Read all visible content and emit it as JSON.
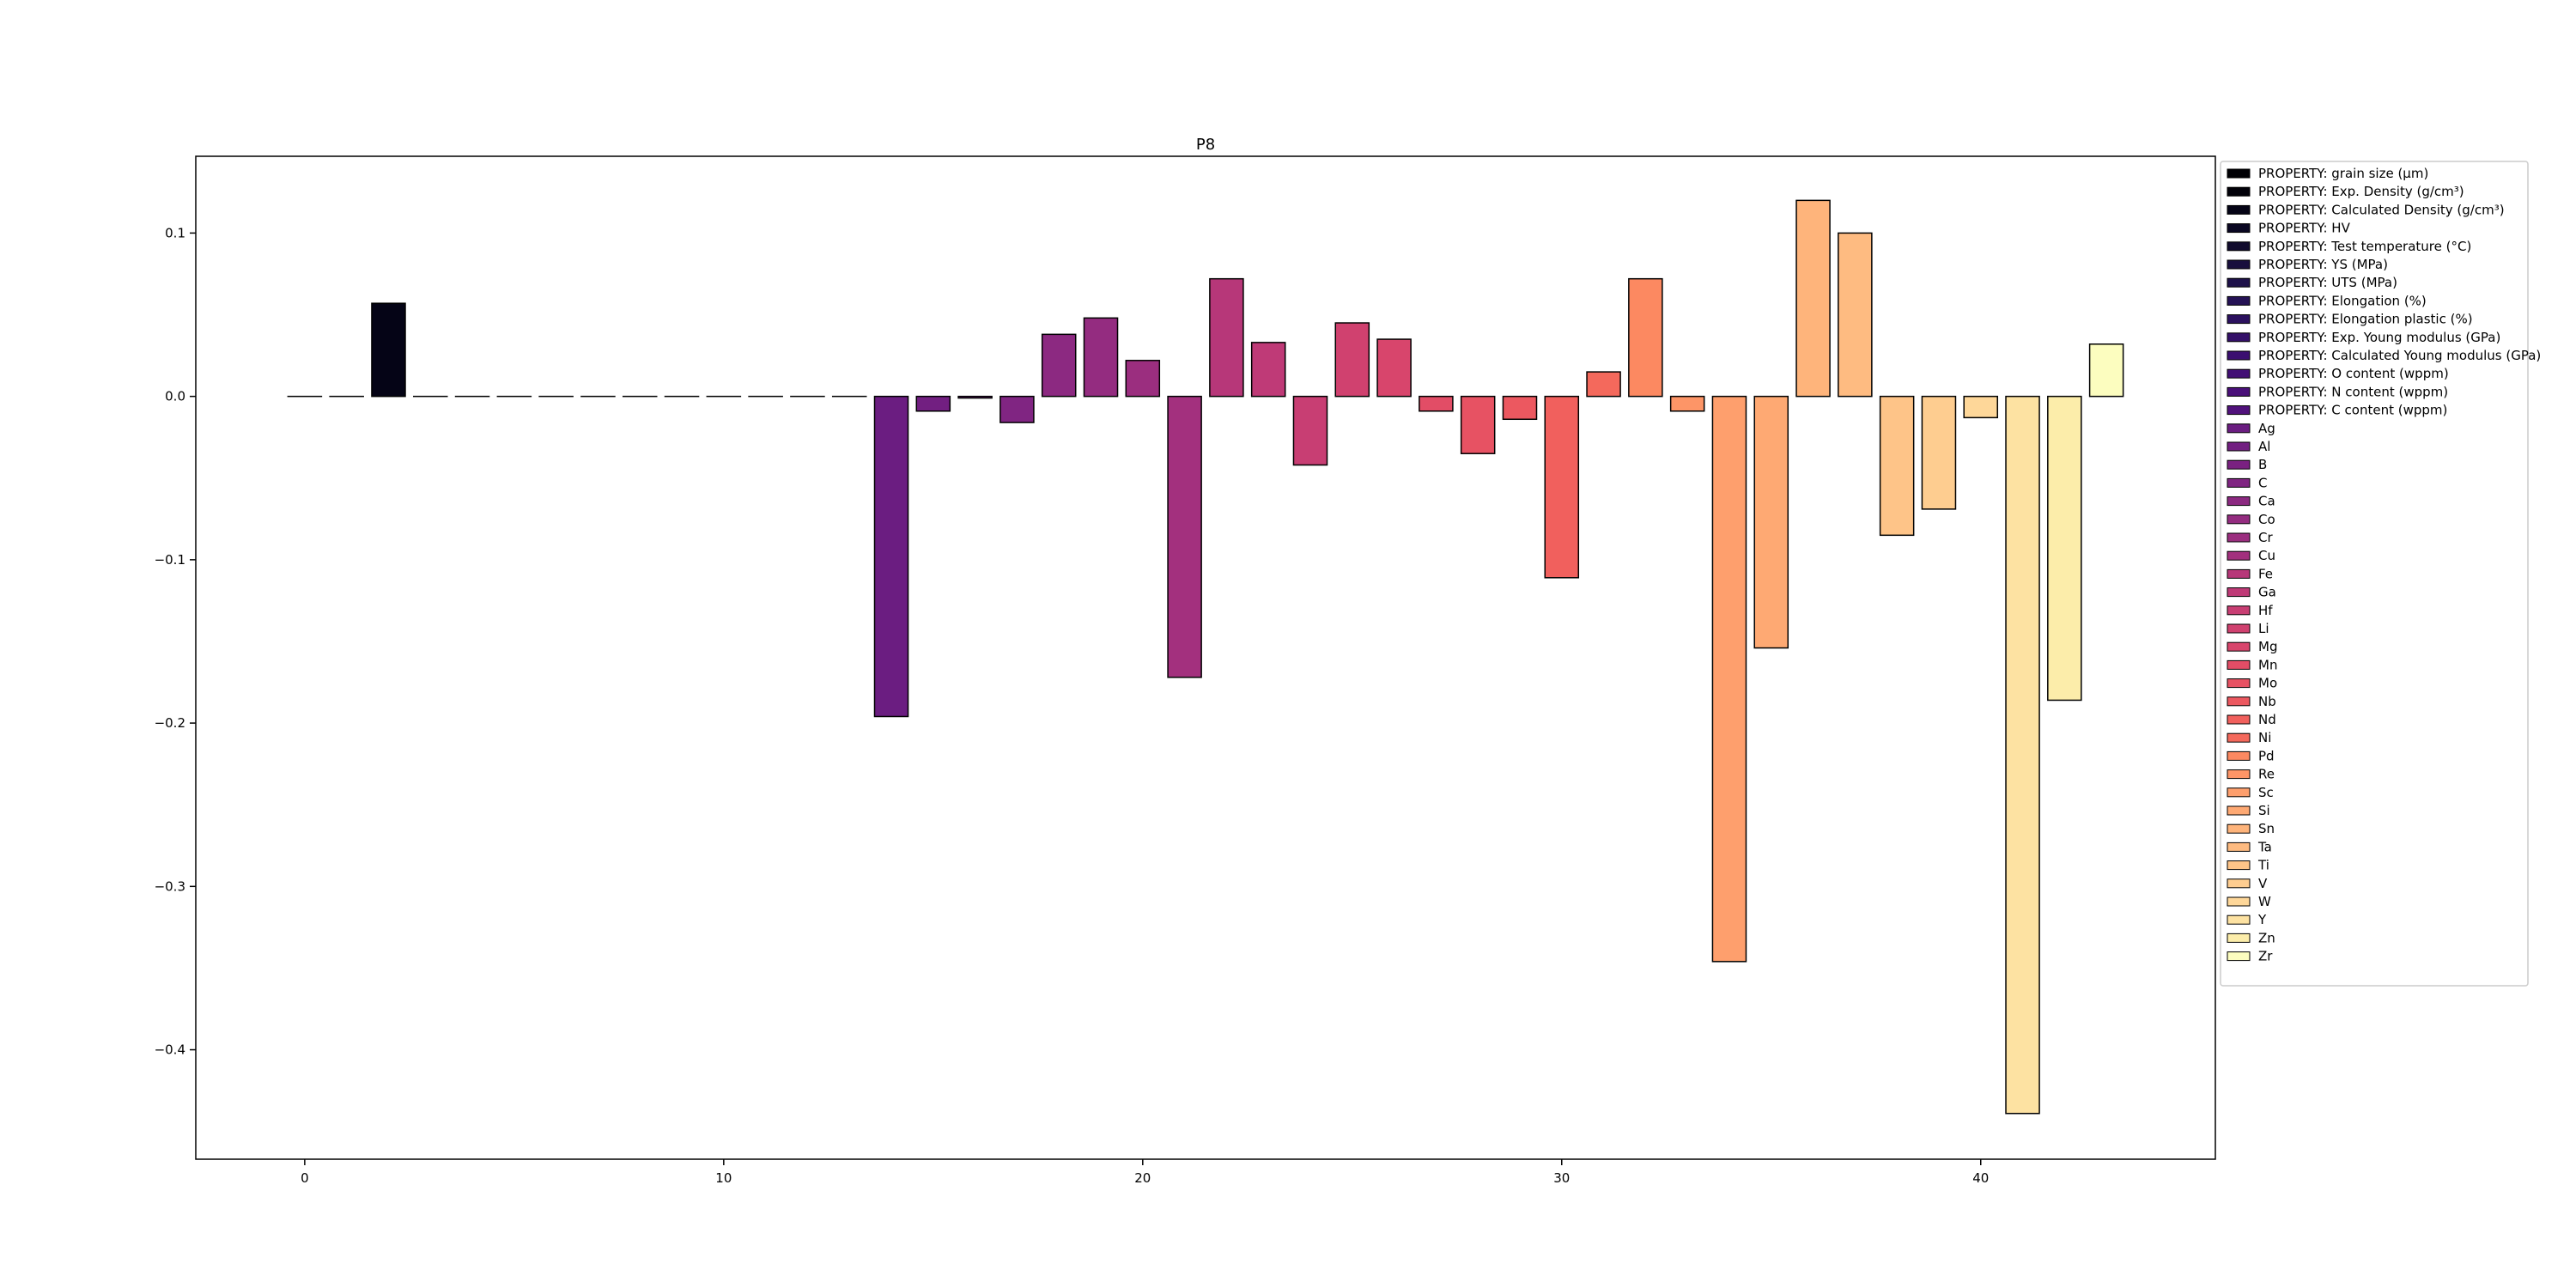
{
  "chart_data": {
    "type": "bar",
    "title": "P8",
    "xlabel": "",
    "ylabel": "",
    "xlim": [
      -2.6,
      45.6
    ],
    "ylim": [
      -0.467,
      0.147
    ],
    "grid": false,
    "legend_placement": "outside-right",
    "x_ticks": [
      {
        "value": 0,
        "label": "0"
      },
      {
        "value": 10,
        "label": "10"
      },
      {
        "value": 20,
        "label": "20"
      },
      {
        "value": 30,
        "label": "30"
      },
      {
        "value": 40,
        "label": "40"
      }
    ],
    "y_ticks": [
      {
        "value": 0.1,
        "label": "0.1"
      },
      {
        "value": 0.0,
        "label": "0.0"
      },
      {
        "value": -0.1,
        "label": "−0.1"
      },
      {
        "value": -0.2,
        "label": "−0.2"
      },
      {
        "value": -0.3,
        "label": "−0.3"
      },
      {
        "value": -0.4,
        "label": "−0.4"
      }
    ],
    "bars": [
      {
        "x": 0,
        "label": "PROPERTY: grain size (μm)",
        "value": 0.0,
        "color": "#000004"
      },
      {
        "x": 1,
        "label": "PROPERTY: Exp. Density (g/cm³)",
        "value": 0.0,
        "color": "#020109"
      },
      {
        "x": 2,
        "label": "PROPERTY: Calculated Density (g/cm³)",
        "value": 0.057,
        "color": "#050416"
      },
      {
        "x": 3,
        "label": "PROPERTY: HV",
        "value": 0.0,
        "color": "#0a0722"
      },
      {
        "x": 4,
        "label": "PROPERTY: Test temperature (°C)",
        "value": 0.0,
        "color": "#110b2d"
      },
      {
        "x": 5,
        "label": "PROPERTY: YS (MPa)",
        "value": 0.0,
        "color": "#180f3d"
      },
      {
        "x": 6,
        "label": "PROPERTY: UTS (MPa)",
        "value": 0.0,
        "color": "#1e1149"
      },
      {
        "x": 7,
        "label": "PROPERTY: Elongation (%)",
        "value": 0.0,
        "color": "#251255"
      },
      {
        "x": 8,
        "label": "PROPERTY: Elongation plastic (%)",
        "value": 0.0,
        "color": "#2c115f"
      },
      {
        "x": 9,
        "label": "PROPERTY: Exp. Young modulus (GPa)",
        "value": 0.0,
        "color": "#341068"
      },
      {
        "x": 10,
        "label": "PROPERTY: Calculated Young modulus (GPa)",
        "value": 0.0,
        "color": "#3b0f70"
      },
      {
        "x": 11,
        "label": "PROPERTY: O content (wppm)",
        "value": 0.0,
        "color": "#420f75"
      },
      {
        "x": 12,
        "label": "PROPERTY: N content (wppm)",
        "value": 0.0,
        "color": "#4a1079"
      },
      {
        "x": 13,
        "label": "PROPERTY: C content (wppm)",
        "value": 0.0,
        "color": "#51127c"
      },
      {
        "x": 14,
        "label": "Ag",
        "value": -0.196,
        "color": "#6b1d81"
      },
      {
        "x": 15,
        "label": "Al",
        "value": -0.009,
        "color": "#721f81"
      },
      {
        "x": 16,
        "label": "B",
        "value": -0.001,
        "color": "#7a2181"
      },
      {
        "x": 17,
        "label": "C",
        "value": -0.016,
        "color": "#802582"
      },
      {
        "x": 18,
        "label": "Ca",
        "value": 0.038,
        "color": "#8c2981"
      },
      {
        "x": 19,
        "label": "Co",
        "value": 0.048,
        "color": "#942c80"
      },
      {
        "x": 20,
        "label": "Cr",
        "value": 0.022,
        "color": "#9b2e7f"
      },
      {
        "x": 21,
        "label": "Cu",
        "value": -0.172,
        "color": "#a3307e"
      },
      {
        "x": 22,
        "label": "Fe",
        "value": 0.072,
        "color": "#b73779"
      },
      {
        "x": 23,
        "label": "Ga",
        "value": 0.033,
        "color": "#bf3a77"
      },
      {
        "x": 24,
        "label": "Hf",
        "value": -0.042,
        "color": "#c83e73"
      },
      {
        "x": 25,
        "label": "Li",
        "value": 0.045,
        "color": "#d0416f"
      },
      {
        "x": 26,
        "label": "Mg",
        "value": 0.035,
        "color": "#d8456c"
      },
      {
        "x": 27,
        "label": "Mn",
        "value": -0.009,
        "color": "#e24d66"
      },
      {
        "x": 28,
        "label": "Mo",
        "value": -0.035,
        "color": "#e75263"
      },
      {
        "x": 29,
        "label": "Nb",
        "value": -0.014,
        "color": "#ec5860"
      },
      {
        "x": 30,
        "label": "Nd",
        "value": -0.111,
        "color": "#f1605d"
      },
      {
        "x": 31,
        "label": "Ni",
        "value": 0.015,
        "color": "#f4695c"
      },
      {
        "x": 32,
        "label": "Pd",
        "value": 0.072,
        "color": "#fc8961"
      },
      {
        "x": 33,
        "label": "Re",
        "value": -0.009,
        "color": "#fd9567"
      },
      {
        "x": 34,
        "label": "Sc",
        "value": -0.346,
        "color": "#fe9f6d"
      },
      {
        "x": 35,
        "label": "Si",
        "value": -0.154,
        "color": "#fea973"
      },
      {
        "x": 36,
        "label": "Sn",
        "value": 0.12,
        "color": "#feb47b"
      },
      {
        "x": 37,
        "label": "Ta",
        "value": 0.1,
        "color": "#febb81"
      },
      {
        "x": 38,
        "label": "Ti",
        "value": -0.085,
        "color": "#fec488"
      },
      {
        "x": 39,
        "label": "V",
        "value": -0.069,
        "color": "#fecd90"
      },
      {
        "x": 40,
        "label": "W",
        "value": -0.013,
        "color": "#fed799"
      },
      {
        "x": 41,
        "label": "Y",
        "value": -0.439,
        "color": "#fde2a2"
      },
      {
        "x": 42,
        "label": "Zn",
        "value": -0.186,
        "color": "#fcedaa"
      },
      {
        "x": 43,
        "label": "Zr",
        "value": 0.032,
        "color": "#fcfdbf"
      }
    ]
  }
}
